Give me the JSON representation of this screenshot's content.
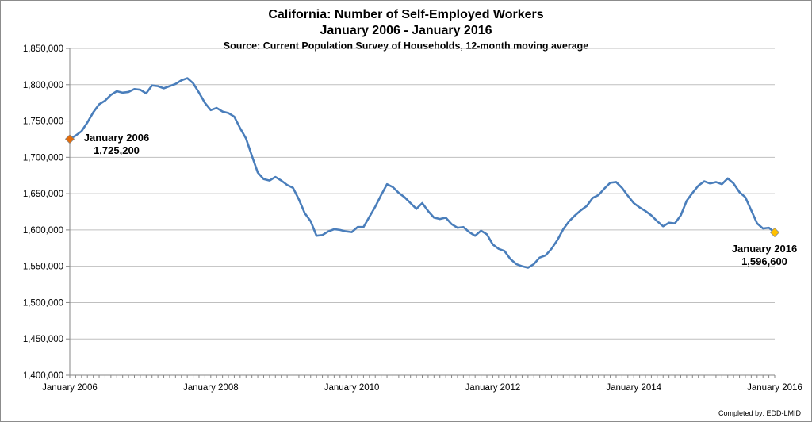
{
  "chart_data": {
    "type": "line",
    "title": "California: Number of Self-Employed Workers",
    "subtitle": "January 2006 - January 2016",
    "source": "Source: Current Population Survey of Households, 12-month moving average",
    "xlabel": "",
    "ylabel": "",
    "x_ticks": [
      "January 2006",
      "January 2008",
      "January 2010",
      "January 2012",
      "January 2014",
      "January 2016"
    ],
    "ylim": [
      1400000,
      1850000
    ],
    "y_ticks": [
      "1,400,000",
      "1,450,000",
      "1,500,000",
      "1,550,000",
      "1,600,000",
      "1,650,000",
      "1,700,000",
      "1,750,000",
      "1,800,000",
      "1,850,000"
    ],
    "grid": true,
    "line_color": "#4a7ebb",
    "x_start": "2006-01",
    "x_end": "2016-01",
    "values": [
      1725200,
      1730000,
      1736000,
      1748000,
      1762000,
      1773000,
      1778000,
      1786000,
      1791000,
      1789000,
      1790000,
      1794000,
      1793000,
      1788000,
      1799000,
      1798000,
      1795000,
      1798000,
      1801000,
      1806000,
      1809000,
      1802000,
      1789000,
      1775000,
      1765000,
      1768000,
      1763000,
      1761000,
      1756000,
      1740000,
      1726000,
      1702000,
      1679000,
      1670000,
      1668000,
      1673000,
      1668000,
      1662000,
      1658000,
      1642000,
      1623000,
      1612000,
      1592000,
      1593000,
      1598000,
      1601000,
      1600000,
      1598000,
      1597000,
      1604000,
      1604000,
      1618000,
      1632000,
      1648000,
      1663000,
      1659000,
      1651000,
      1645000,
      1637000,
      1629000,
      1637000,
      1626000,
      1617000,
      1615000,
      1617000,
      1608000,
      1603000,
      1604000,
      1597000,
      1592000,
      1599000,
      1594000,
      1580000,
      1574000,
      1571000,
      1560000,
      1553000,
      1550000,
      1548000,
      1553000,
      1562000,
      1565000,
      1574000,
      1586000,
      1601000,
      1612000,
      1620000,
      1627000,
      1633000,
      1644000,
      1648000,
      1657000,
      1665000,
      1666000,
      1658000,
      1647000,
      1637000,
      1631000,
      1626000,
      1620000,
      1612000,
      1605000,
      1610000,
      1609000,
      1620000,
      1640000,
      1651000,
      1661000,
      1667000,
      1664000,
      1666000,
      1663000,
      1671000,
      1664000,
      1652000,
      1645000,
      1627000,
      1609000,
      1602000,
      1603000,
      1596600
    ],
    "start_point": {
      "label_line1": "January 2006",
      "label_line2": "1,725,200",
      "color": "#e46c0a"
    },
    "end_point": {
      "label_line1": "January 2016",
      "label_line2": "1,596,600",
      "color": "#ffc000"
    }
  },
  "footer": {
    "credit": "Completed by: EDD-LMID"
  }
}
